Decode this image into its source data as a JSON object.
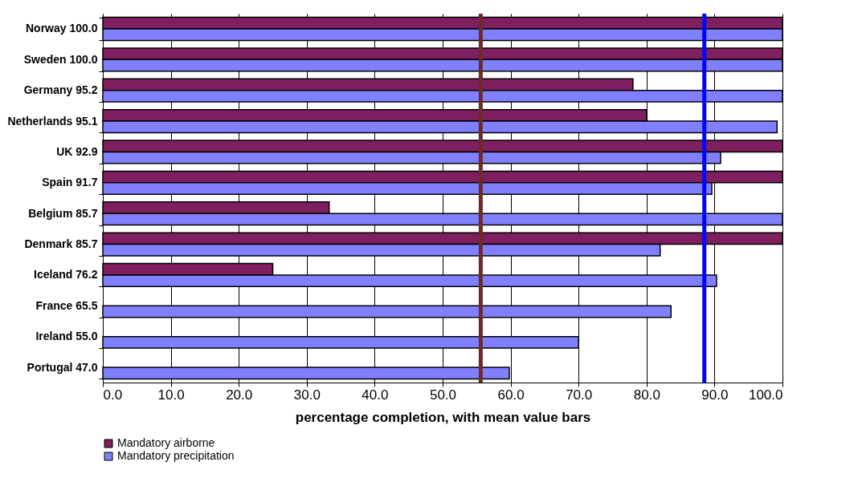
{
  "chart_data": {
    "type": "bar",
    "orientation": "horizontal",
    "categories": [
      "Norway 100.0",
      "Sweden 100.0",
      "Germany 95.2",
      "Netherlands 95.1",
      "UK 92.9",
      "Spain 91.7",
      "Belgium 85.7",
      "Denmark 85.7",
      "Iceland 76.2",
      "France 65.5",
      "Ireland 55.0",
      "Portugal 47.0"
    ],
    "series": [
      {
        "name": "Mandatory airborne",
        "color": "#7f1f5f",
        "values": [
          100,
          100,
          78,
          80,
          100,
          100,
          33.3,
          100,
          25,
          null,
          null,
          null
        ]
      },
      {
        "name": "Mandatory precipitation",
        "color": "#8080ff",
        "values": [
          100,
          100,
          100,
          99.2,
          90.9,
          89.6,
          100,
          82.0,
          90.3,
          83.6,
          70.0,
          59.8
        ]
      }
    ],
    "xlabel": "percentage completion, with mean value bars",
    "xlim": [
      0,
      100
    ],
    "xticks": [
      {
        "value": 0,
        "label": "0.0"
      },
      {
        "value": 10,
        "label": "10.0"
      },
      {
        "value": 20,
        "label": "20.0"
      },
      {
        "value": 30,
        "label": "30.0"
      },
      {
        "value": 40,
        "label": "40.0"
      },
      {
        "value": 50,
        "label": "50.0"
      },
      {
        "value": 60,
        "label": "60.0"
      },
      {
        "value": 70,
        "label": "70.0"
      },
      {
        "value": 80,
        "label": "80.0"
      },
      {
        "value": 90,
        "label": "90.0"
      },
      {
        "value": 100,
        "label": "100.0"
      }
    ],
    "ref_lines": [
      {
        "axis": "x",
        "value": 55.6,
        "color": "#6b2b2b"
      },
      {
        "axis": "x",
        "value": 88.5,
        "color": "#0000ff"
      }
    ],
    "grid": "x",
    "legend": "bottom"
  }
}
